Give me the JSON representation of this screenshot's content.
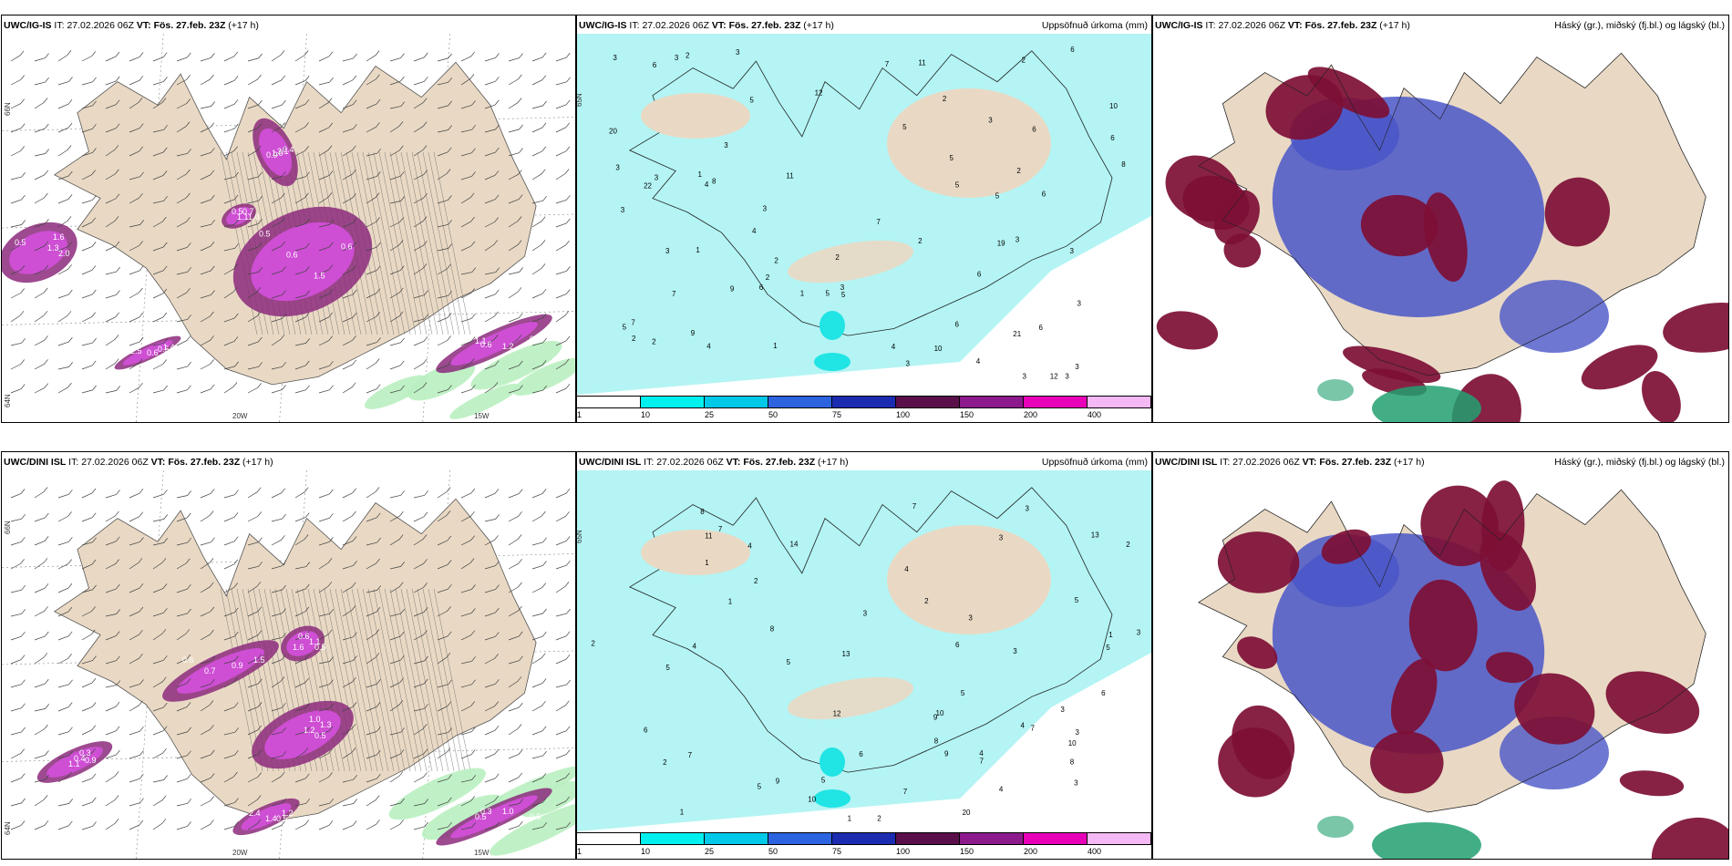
{
  "colors": {
    "land": "#e9d9c4",
    "cyan_light": "#b4f4f4",
    "cyan": "#21e4e4",
    "magenta": "#d14fd8",
    "magenta_dark": "#8c2a7d",
    "green_light": "#b9efc0",
    "cloud_high": "#7d0f35",
    "cloud_mid": "#4a56c8",
    "cloud_low": "#22a070"
  },
  "rows": [
    {
      "model_label": "UWC/IG-IS",
      "it_label": "IT:",
      "it_value": "27.02.2026 06Z",
      "vt_label": "VT:",
      "vt_value": "Fös. 27.feb. 23Z",
      "lead": "(+17 h)",
      "precip_points": [
        "2",
        "4",
        "3",
        "3",
        "3",
        "5",
        "5",
        "4",
        "6",
        "5",
        "6",
        "7",
        "3",
        "3",
        "3",
        "6",
        "7",
        "8",
        "10",
        "11",
        "12",
        "8",
        "10",
        "9",
        "6",
        "5",
        "4",
        "7",
        "6",
        "5",
        "2",
        "1",
        "2",
        "3",
        "3",
        "3",
        "3",
        "2",
        "1",
        "1",
        "3",
        "3",
        "3",
        "4",
        "5",
        "2",
        "3",
        "3",
        "3",
        "2",
        "3",
        "2",
        "2",
        "2",
        "6",
        "5",
        "4",
        "6",
        "7",
        "9",
        "11",
        "12",
        "20",
        "19",
        "21",
        "22",
        "6",
        "5",
        "6",
        "2",
        "3",
        "1"
      ],
      "wind_labels": [
        "0.5",
        "1.3",
        "0.9",
        "0.6",
        "0.5",
        "1.4",
        "0.6",
        "1.6",
        "1.0",
        "0.5",
        "1.1",
        "0.6",
        "1.5",
        "2.0",
        "3.1",
        "1.2",
        "0.7",
        "2.5",
        "0.6",
        "0.5",
        "0.4",
        "1.1",
        "1.0",
        "0.5"
      ]
    },
    {
      "model_label": "UWC/DINI ISL",
      "it_label": "IT:",
      "it_value": "27.02.2026 06Z",
      "vt_label": "VT:",
      "vt_value": "Fös. 27.feb. 23Z",
      "lead": "(+17 h)",
      "precip_points": [
        "9",
        "4",
        "5",
        "5",
        "3",
        "1",
        "2",
        "3",
        "2",
        "2",
        "1",
        "1",
        "3",
        "7",
        "13",
        "10",
        "5",
        "4",
        "6",
        "7",
        "5",
        "8",
        "11",
        "9",
        "14",
        "10",
        "3",
        "4",
        "2",
        "1",
        "2",
        "3",
        "4",
        "3",
        "4",
        "5",
        "2",
        "1",
        "3",
        "3",
        "8",
        "7",
        "6",
        "6",
        "13",
        "10",
        "20",
        "12",
        "6",
        "7",
        "8",
        "9",
        "5",
        "7",
        "7",
        "8",
        "5",
        "4",
        "3"
      ],
      "wind_labels": [
        "0.6",
        "1.2",
        "1.1",
        "0.3",
        "0.5",
        "1.2",
        "0.9",
        "1.0",
        "0.4",
        "0.5",
        "0.6",
        "1.4",
        "0.7",
        "0.5",
        "0.3",
        "1.0",
        "1.1",
        "2.4",
        "1.5",
        "1.3",
        "0.9",
        "0.5",
        "1.6",
        "0.5"
      ]
    }
  ],
  "precip_title": "Uppsöfnuð úrkoma (mm)",
  "cloud_title": "Háský (gr.), miðský (fj.bl.) og lágský (bl.)",
  "colorbar": {
    "ticks": [
      "1",
      "10",
      "25",
      "50",
      "75",
      "100",
      "150",
      "200",
      "400"
    ],
    "colors": [
      "#ffffff",
      "#00f0f0",
      "#00c8e8",
      "#2c64e0",
      "#1c2cb0",
      "#5a0f4a",
      "#8c1a8c",
      "#e800b8",
      "#f4b8f4"
    ]
  },
  "axes": {
    "lon_ticks": [
      "20W",
      "15W"
    ],
    "lat_ticks": [
      "66N",
      "64N",
      "65N"
    ]
  }
}
